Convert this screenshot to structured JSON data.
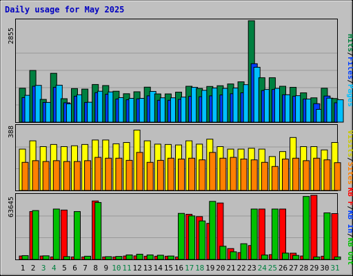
{
  "chart_data": [
    {
      "type": "bar",
      "title": "Daily usage for May 2025",
      "categories": [
        "1",
        "2",
        "3",
        "4",
        "5",
        "6",
        "7",
        "8",
        "9",
        "10",
        "11",
        "12",
        "13",
        "14",
        "15",
        "16",
        "17",
        "18",
        "19",
        "20",
        "21",
        "22",
        "23",
        "24",
        "25",
        "26",
        "27",
        "28",
        "29",
        "30",
        "31"
      ],
      "ymax_label": "2855",
      "ylim": [
        0,
        2855
      ],
      "grid": true,
      "legend_placement": "right",
      "legend": [
        {
          "text": "Hits",
          "color": "#008040"
        },
        {
          "text": "/",
          "color": "#000000"
        },
        {
          "text": "Files",
          "color": "#0040ff"
        },
        {
          "text": "/",
          "color": "#000000"
        },
        {
          "text": "Pages",
          "color": "#00c0ff"
        }
      ],
      "series": [
        {
          "name": "Hits",
          "color": "#008040",
          "values": [
            955,
            1455,
            640,
            1375,
            660,
            945,
            930,
            1060,
            1030,
            870,
            800,
            855,
            985,
            795,
            795,
            845,
            1010,
            950,
            1005,
            1025,
            1075,
            1135,
            2855,
            1250,
            1250,
            1010,
            980,
            825,
            685,
            955,
            665
          ]
        },
        {
          "name": "Files",
          "color": "#0040ff",
          "values": [
            690,
            1010,
            555,
            980,
            545,
            730,
            555,
            830,
            785,
            650,
            630,
            655,
            740,
            615,
            615,
            640,
            725,
            715,
            740,
            765,
            800,
            825,
            1645,
            890,
            920,
            770,
            730,
            650,
            520,
            735,
            545
          ]
        },
        {
          "name": "Pages",
          "color": "#00c0ff",
          "values": [
            755,
            1035,
            555,
            1040,
            515,
            770,
            560,
            870,
            850,
            690,
            670,
            670,
            865,
            685,
            685,
            705,
            980,
            895,
            960,
            950,
            960,
            1055,
            1545,
            920,
            950,
            770,
            745,
            650,
            360,
            675,
            630
          ]
        }
      ]
    },
    {
      "type": "bar",
      "categories": [
        "1",
        "2",
        "3",
        "4",
        "5",
        "6",
        "7",
        "8",
        "9",
        "10",
        "11",
        "12",
        "13",
        "14",
        "15",
        "16",
        "17",
        "18",
        "19",
        "20",
        "21",
        "22",
        "23",
        "24",
        "25",
        "26",
        "27",
        "28",
        "29",
        "30",
        "31"
      ],
      "ymax_label": "388",
      "ylim": [
        0,
        388
      ],
      "grid": true,
      "legend_placement": "right",
      "legend": [
        {
          "text": "Visits",
          "color": "#c8c800"
        },
        {
          "text": "/",
          "color": "#000000"
        },
        {
          "text": "Sites",
          "color": "#ff8000"
        }
      ],
      "series": [
        {
          "name": "Visits",
          "color": "#ffff00",
          "values": [
            250,
            300,
            265,
            278,
            265,
            270,
            278,
            305,
            305,
            282,
            290,
            365,
            300,
            280,
            278,
            275,
            300,
            280,
            310,
            265,
            250,
            250,
            255,
            250,
            205,
            235,
            320,
            265,
            265,
            245,
            290
          ]
        },
        {
          "name": "Sites",
          "color": "#ff8000",
          "values": [
            170,
            180,
            175,
            180,
            175,
            175,
            180,
            200,
            195,
            195,
            182,
            230,
            170,
            182,
            195,
            190,
            195,
            185,
            230,
            195,
            200,
            190,
            185,
            170,
            145,
            190,
            195,
            180,
            195,
            185,
            168
          ]
        }
      ]
    },
    {
      "type": "bar",
      "categories": [
        "1",
        "2",
        "3",
        "4",
        "5",
        "6",
        "7",
        "8",
        "9",
        "10",
        "11",
        "12",
        "13",
        "14",
        "15",
        "16",
        "17",
        "18",
        "19",
        "20",
        "21",
        "22",
        "23",
        "24",
        "25",
        "26",
        "27",
        "28",
        "29",
        "30",
        "31"
      ],
      "ymax_label": "63645",
      "ylim": [
        0,
        63645
      ],
      "grid": true,
      "legend_placement": "right",
      "legend": [
        {
          "text": "KB F",
          "color": "#ff0000"
        },
        {
          "text": "/",
          "color": "#000000"
        },
        {
          "text": "KB In",
          "color": "#0040ff"
        },
        {
          "text": "/",
          "color": "#000000"
        },
        {
          "text": "KB Out",
          "color": "#00c000"
        }
      ],
      "series": [
        {
          "name": "KB F",
          "color": "#ff0000",
          "values": [
            3400,
            47500,
            3400,
            2500,
            49000,
            2500,
            2500,
            58000,
            2500,
            2500,
            3400,
            3500,
            3200,
            3200,
            3200,
            2500,
            44800,
            42500,
            35800,
            56000,
            10800,
            6800,
            13800,
            50000,
            4800,
            50000,
            6200,
            3400,
            63645,
            3200,
            45500
          ]
        },
        {
          "name": "KB Out",
          "color": "#00c000",
          "values": [
            3800,
            48500,
            3600,
            50000,
            2800,
            47500,
            3200,
            56500,
            2800,
            3000,
            4500,
            5200,
            4500,
            4200,
            3400,
            45700,
            43200,
            38200,
            57600,
            13100,
            7600,
            15600,
            50000,
            4400,
            50000,
            6300,
            4000,
            62500,
            2500,
            46200,
            2500
          ]
        }
      ]
    }
  ],
  "day_label_colors": [
    "#000000",
    "#000000",
    "#008040",
    "#008040",
    "#000000",
    "#000000",
    "#000000",
    "#000000",
    "#000000",
    "#008040",
    "#008040",
    "#000000",
    "#000000",
    "#000000",
    "#000000",
    "#000000",
    "#008040",
    "#008040",
    "#000000",
    "#000000",
    "#000000",
    "#000000",
    "#000000",
    "#008040",
    "#008040",
    "#000000",
    "#000000",
    "#000000",
    "#000000",
    "#000000",
    "#008040"
  ]
}
